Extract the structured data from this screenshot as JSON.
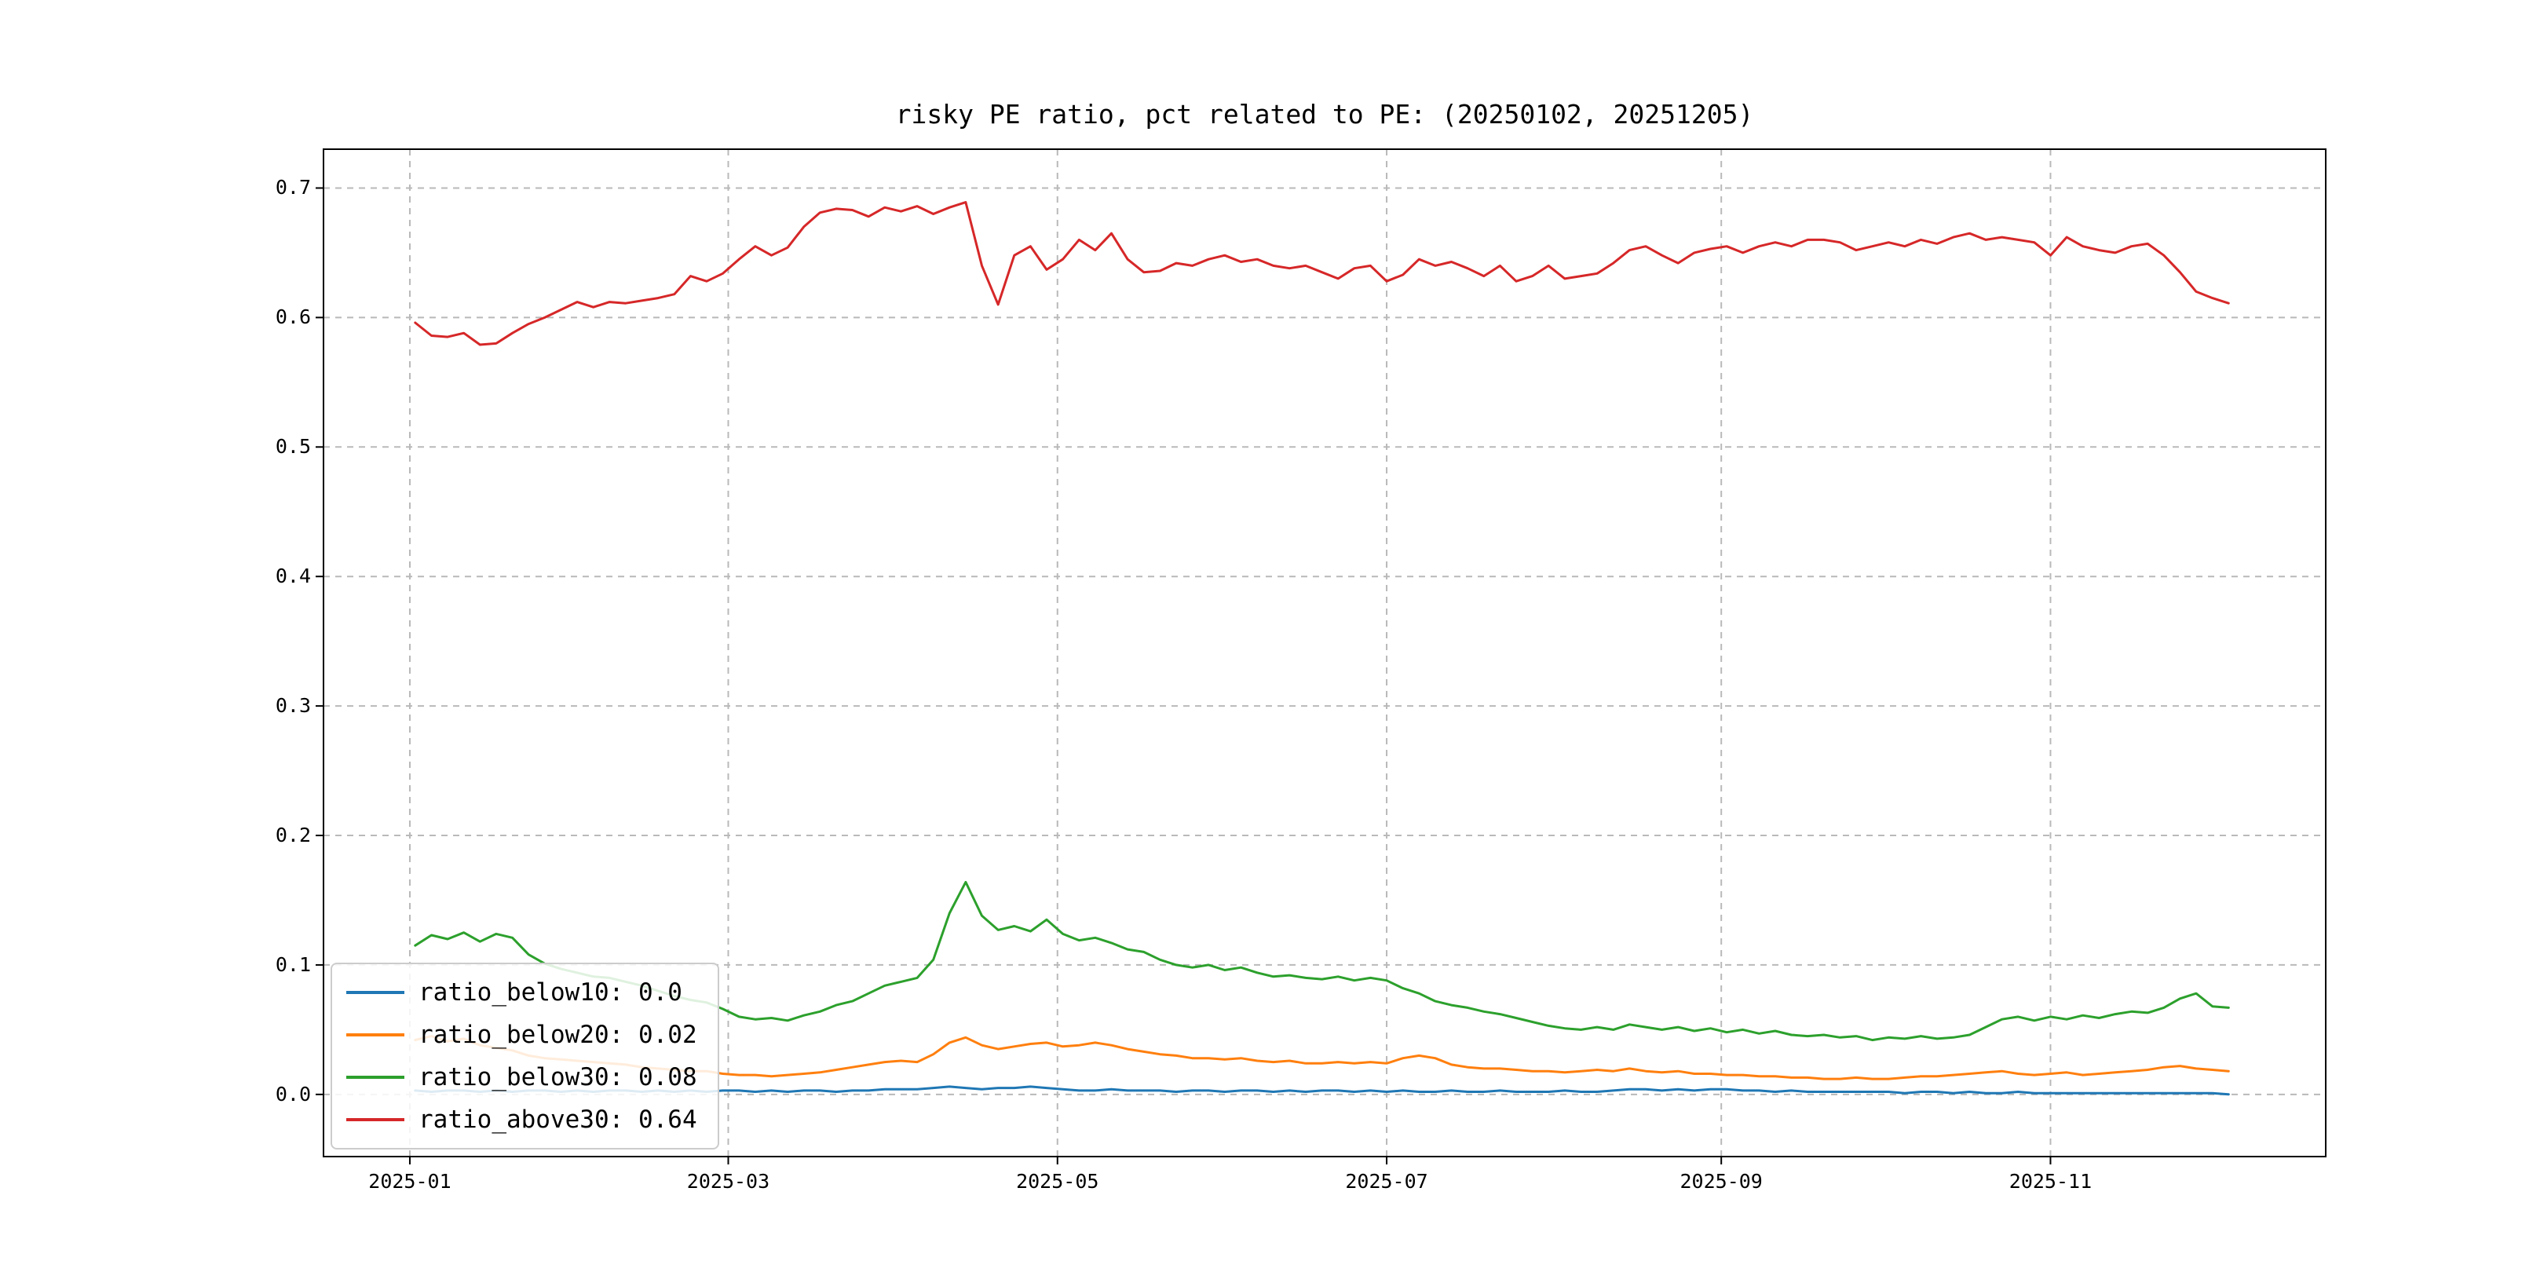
{
  "page": {
    "background": "#ffffff"
  },
  "chart_data": {
    "type": "line",
    "title": "risky PE ratio, pct related to PE: (20250102, 20251205)",
    "xlabel": "",
    "ylabel": "",
    "grid": "dashed",
    "legend_position": "lower left",
    "xlim": [
      -15,
      356
    ],
    "ylim": [
      -0.048,
      0.73
    ],
    "xticks": [
      1,
      60,
      121,
      182,
      244,
      305
    ],
    "xtick_labels": [
      "2025-01",
      "2025-03",
      "2025-05",
      "2025-07",
      "2025-09",
      "2025-11"
    ],
    "yticks": [
      0.0,
      0.1,
      0.2,
      0.3,
      0.4,
      0.5,
      0.6,
      0.7
    ],
    "ytick_labels": [
      "0.0",
      "0.1",
      "0.2",
      "0.3",
      "0.4",
      "0.5",
      "0.6",
      "0.7"
    ],
    "x_days": [
      2,
      5,
      8,
      11,
      14,
      17,
      20,
      23,
      26,
      29,
      32,
      35,
      38,
      41,
      44,
      47,
      50,
      53,
      56,
      59,
      62,
      65,
      68,
      71,
      74,
      77,
      80,
      83,
      86,
      89,
      92,
      95,
      98,
      101,
      104,
      107,
      110,
      113,
      116,
      119,
      122,
      125,
      128,
      131,
      134,
      137,
      140,
      143,
      146,
      149,
      152,
      155,
      158,
      161,
      164,
      167,
      170,
      173,
      176,
      179,
      182,
      185,
      188,
      191,
      194,
      197,
      200,
      203,
      206,
      209,
      212,
      215,
      218,
      221,
      224,
      227,
      230,
      233,
      236,
      239,
      242,
      245,
      248,
      251,
      254,
      257,
      260,
      263,
      266,
      269,
      272,
      275,
      278,
      281,
      284,
      287,
      290,
      293,
      296,
      299,
      302,
      305,
      308,
      311,
      314,
      317,
      320,
      323,
      326,
      329,
      332,
      335,
      338
    ],
    "series": [
      {
        "name": "ratio_below10",
        "legend": "ratio_below10: 0.0",
        "color": "#1f77b4",
        "values": [
          0.003,
          0.002,
          0.003,
          0.003,
          0.002,
          0.003,
          0.002,
          0.003,
          0.003,
          0.002,
          0.003,
          0.002,
          0.003,
          0.003,
          0.002,
          0.003,
          0.002,
          0.003,
          0.002,
          0.003,
          0.003,
          0.002,
          0.003,
          0.002,
          0.003,
          0.003,
          0.002,
          0.003,
          0.003,
          0.004,
          0.004,
          0.004,
          0.005,
          0.006,
          0.005,
          0.004,
          0.005,
          0.005,
          0.006,
          0.005,
          0.004,
          0.003,
          0.003,
          0.004,
          0.003,
          0.003,
          0.003,
          0.002,
          0.003,
          0.003,
          0.002,
          0.003,
          0.003,
          0.002,
          0.003,
          0.002,
          0.003,
          0.003,
          0.002,
          0.003,
          0.002,
          0.003,
          0.002,
          0.002,
          0.003,
          0.002,
          0.002,
          0.003,
          0.002,
          0.002,
          0.002,
          0.003,
          0.002,
          0.002,
          0.003,
          0.004,
          0.004,
          0.003,
          0.004,
          0.003,
          0.004,
          0.004,
          0.003,
          0.003,
          0.002,
          0.003,
          0.002,
          0.002,
          0.002,
          0.002,
          0.002,
          0.002,
          0.001,
          0.002,
          0.002,
          0.001,
          0.002,
          0.001,
          0.001,
          0.002,
          0.001,
          0.001,
          0.001,
          0.001,
          0.001,
          0.001,
          0.001,
          0.001,
          0.001,
          0.001,
          0.001,
          0.001,
          0.0
        ]
      },
      {
        "name": "ratio_below20",
        "legend": "ratio_below20: 0.02",
        "color": "#ff7f0e",
        "values": [
          0.042,
          0.045,
          0.041,
          0.043,
          0.038,
          0.036,
          0.034,
          0.03,
          0.028,
          0.027,
          0.026,
          0.025,
          0.024,
          0.023,
          0.021,
          0.02,
          0.019,
          0.018,
          0.018,
          0.016,
          0.015,
          0.015,
          0.014,
          0.015,
          0.016,
          0.017,
          0.019,
          0.021,
          0.023,
          0.025,
          0.026,
          0.025,
          0.031,
          0.04,
          0.044,
          0.038,
          0.035,
          0.037,
          0.039,
          0.04,
          0.037,
          0.038,
          0.04,
          0.038,
          0.035,
          0.033,
          0.031,
          0.03,
          0.028,
          0.028,
          0.027,
          0.028,
          0.026,
          0.025,
          0.026,
          0.024,
          0.024,
          0.025,
          0.024,
          0.025,
          0.024,
          0.028,
          0.03,
          0.028,
          0.023,
          0.021,
          0.02,
          0.02,
          0.019,
          0.018,
          0.018,
          0.017,
          0.018,
          0.019,
          0.018,
          0.02,
          0.018,
          0.017,
          0.018,
          0.016,
          0.016,
          0.015,
          0.015,
          0.014,
          0.014,
          0.013,
          0.013,
          0.012,
          0.012,
          0.013,
          0.012,
          0.012,
          0.013,
          0.014,
          0.014,
          0.015,
          0.016,
          0.017,
          0.018,
          0.016,
          0.015,
          0.016,
          0.017,
          0.015,
          0.016,
          0.017,
          0.018,
          0.019,
          0.021,
          0.022,
          0.02,
          0.019,
          0.018
        ]
      },
      {
        "name": "ratio_below30",
        "legend": "ratio_below30: 0.08",
        "color": "#2ca02c",
        "values": [
          0.115,
          0.123,
          0.12,
          0.125,
          0.118,
          0.124,
          0.121,
          0.108,
          0.101,
          0.097,
          0.094,
          0.091,
          0.09,
          0.087,
          0.084,
          0.08,
          0.076,
          0.073,
          0.071,
          0.066,
          0.06,
          0.058,
          0.059,
          0.057,
          0.061,
          0.064,
          0.069,
          0.072,
          0.078,
          0.084,
          0.087,
          0.09,
          0.104,
          0.14,
          0.164,
          0.138,
          0.127,
          0.13,
          0.126,
          0.135,
          0.124,
          0.119,
          0.121,
          0.117,
          0.112,
          0.11,
          0.104,
          0.1,
          0.098,
          0.1,
          0.096,
          0.098,
          0.094,
          0.091,
          0.092,
          0.09,
          0.089,
          0.091,
          0.088,
          0.09,
          0.088,
          0.082,
          0.078,
          0.072,
          0.069,
          0.067,
          0.064,
          0.062,
          0.059,
          0.056,
          0.053,
          0.051,
          0.05,
          0.052,
          0.05,
          0.054,
          0.052,
          0.05,
          0.052,
          0.049,
          0.051,
          0.048,
          0.05,
          0.047,
          0.049,
          0.046,
          0.045,
          0.046,
          0.044,
          0.045,
          0.042,
          0.044,
          0.043,
          0.045,
          0.043,
          0.044,
          0.046,
          0.052,
          0.058,
          0.06,
          0.057,
          0.06,
          0.058,
          0.061,
          0.059,
          0.062,
          0.064,
          0.063,
          0.067,
          0.074,
          0.078,
          0.068,
          0.067
        ]
      },
      {
        "name": "ratio_above30",
        "legend": "ratio_above30: 0.64",
        "color": "#d62728",
        "values": [
          0.596,
          0.586,
          0.585,
          0.588,
          0.579,
          0.58,
          0.588,
          0.595,
          0.6,
          0.606,
          0.612,
          0.608,
          0.612,
          0.611,
          0.613,
          0.615,
          0.618,
          0.632,
          0.628,
          0.634,
          0.645,
          0.655,
          0.648,
          0.654,
          0.67,
          0.681,
          0.684,
          0.683,
          0.678,
          0.685,
          0.682,
          0.686,
          0.68,
          0.685,
          0.689,
          0.64,
          0.61,
          0.648,
          0.655,
          0.637,
          0.645,
          0.66,
          0.652,
          0.665,
          0.645,
          0.635,
          0.636,
          0.642,
          0.64,
          0.645,
          0.648,
          0.643,
          0.645,
          0.64,
          0.638,
          0.64,
          0.635,
          0.63,
          0.638,
          0.64,
          0.628,
          0.633,
          0.645,
          0.64,
          0.643,
          0.638,
          0.632,
          0.64,
          0.628,
          0.632,
          0.64,
          0.63,
          0.632,
          0.634,
          0.642,
          0.652,
          0.655,
          0.648,
          0.642,
          0.65,
          0.653,
          0.655,
          0.65,
          0.655,
          0.658,
          0.655,
          0.66,
          0.66,
          0.658,
          0.652,
          0.655,
          0.658,
          0.655,
          0.66,
          0.657,
          0.662,
          0.665,
          0.66,
          0.662,
          0.66,
          0.658,
          0.648,
          0.662,
          0.655,
          0.652,
          0.65,
          0.655,
          0.657,
          0.648,
          0.635,
          0.62,
          0.615,
          0.611
        ]
      }
    ]
  }
}
